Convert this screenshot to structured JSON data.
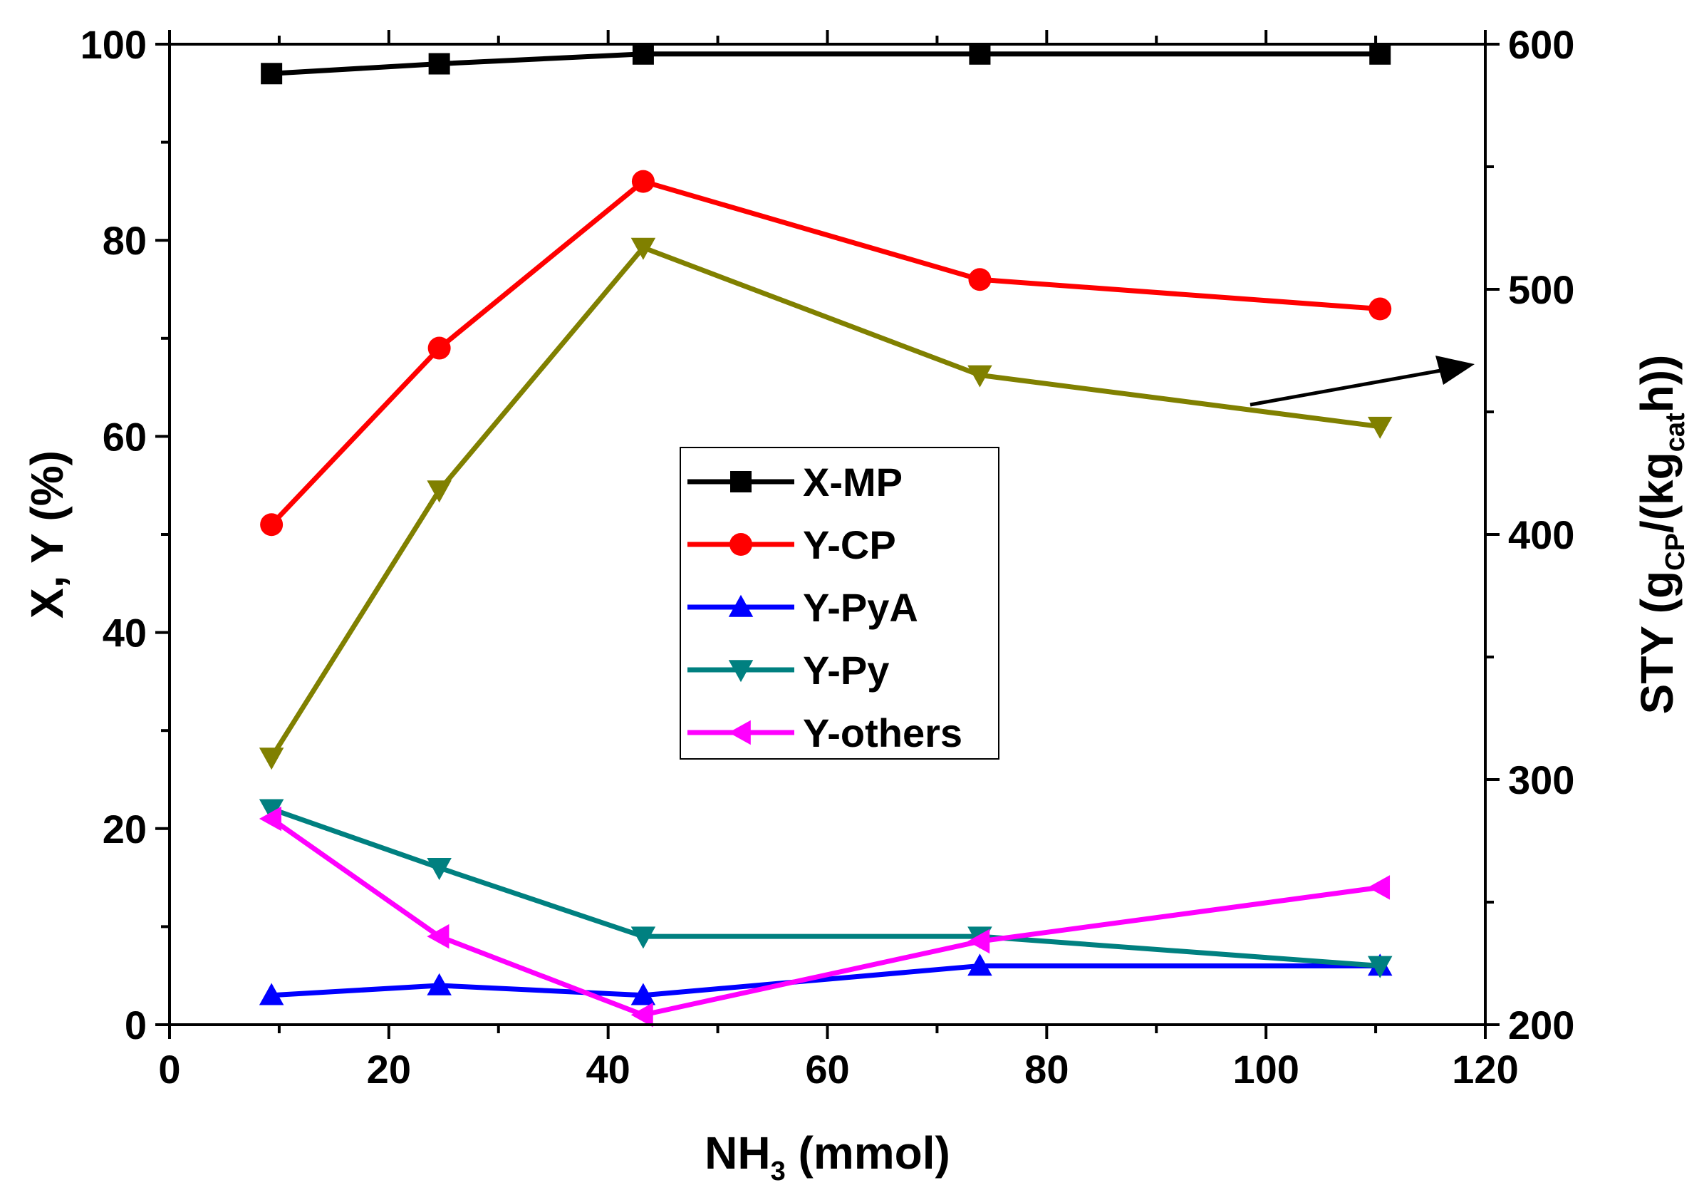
{
  "chart_data": {
    "type": "line",
    "xlabel": "NH",
    "xlabel_sub": "3",
    "xlabel_tail": " (mmol)",
    "ylabel": "X, Y (%)",
    "y2label_prefix": "STY (g",
    "y2label_sub1": "CP",
    "y2label_mid": "/(kg",
    "y2label_sub2": "cat",
    "y2label_tail": "h))",
    "xlim": [
      0,
      120
    ],
    "ylim": [
      0,
      100
    ],
    "y2lim": [
      200,
      600
    ],
    "x_ticks": [
      "0",
      "20",
      "40",
      "60",
      "80",
      "100",
      "120"
    ],
    "y_ticks": [
      "0",
      "20",
      "40",
      "60",
      "80",
      "100"
    ],
    "y2_ticks": [
      "200",
      "300",
      "400",
      "500",
      "600"
    ],
    "x": [
      9.3,
      24.6,
      43.2,
      73.9,
      110.4
    ],
    "series": [
      {
        "name": "X-MP",
        "color": "#000000",
        "marker": "square",
        "values": [
          97,
          98,
          99,
          99,
          99
        ]
      },
      {
        "name": "Y-CP",
        "color": "#ff0000",
        "marker": "circle",
        "values": [
          51,
          69,
          86,
          76,
          73
        ]
      },
      {
        "name": "Y-PyA",
        "color": "#0000ff",
        "marker": "triangle-up",
        "values": [
          3,
          4,
          3,
          6,
          6
        ]
      },
      {
        "name": "Y-Py",
        "color": "#008080",
        "marker": "triangle-down",
        "values": [
          22,
          16,
          9,
          9,
          6
        ]
      },
      {
        "name": "Y-others",
        "color": "#ff00ff",
        "marker": "triangle-left",
        "values": [
          21,
          9,
          1,
          8.5,
          14
        ]
      }
    ],
    "sty_series": {
      "name": "STY",
      "color": "#808000",
      "marker": "triangle-down",
      "axis": "right",
      "values": [
        309,
        418,
        517,
        465,
        444
      ]
    },
    "annotation": {
      "type": "arrow",
      "points_to": "right-axis"
    },
    "legend_position": "center"
  }
}
